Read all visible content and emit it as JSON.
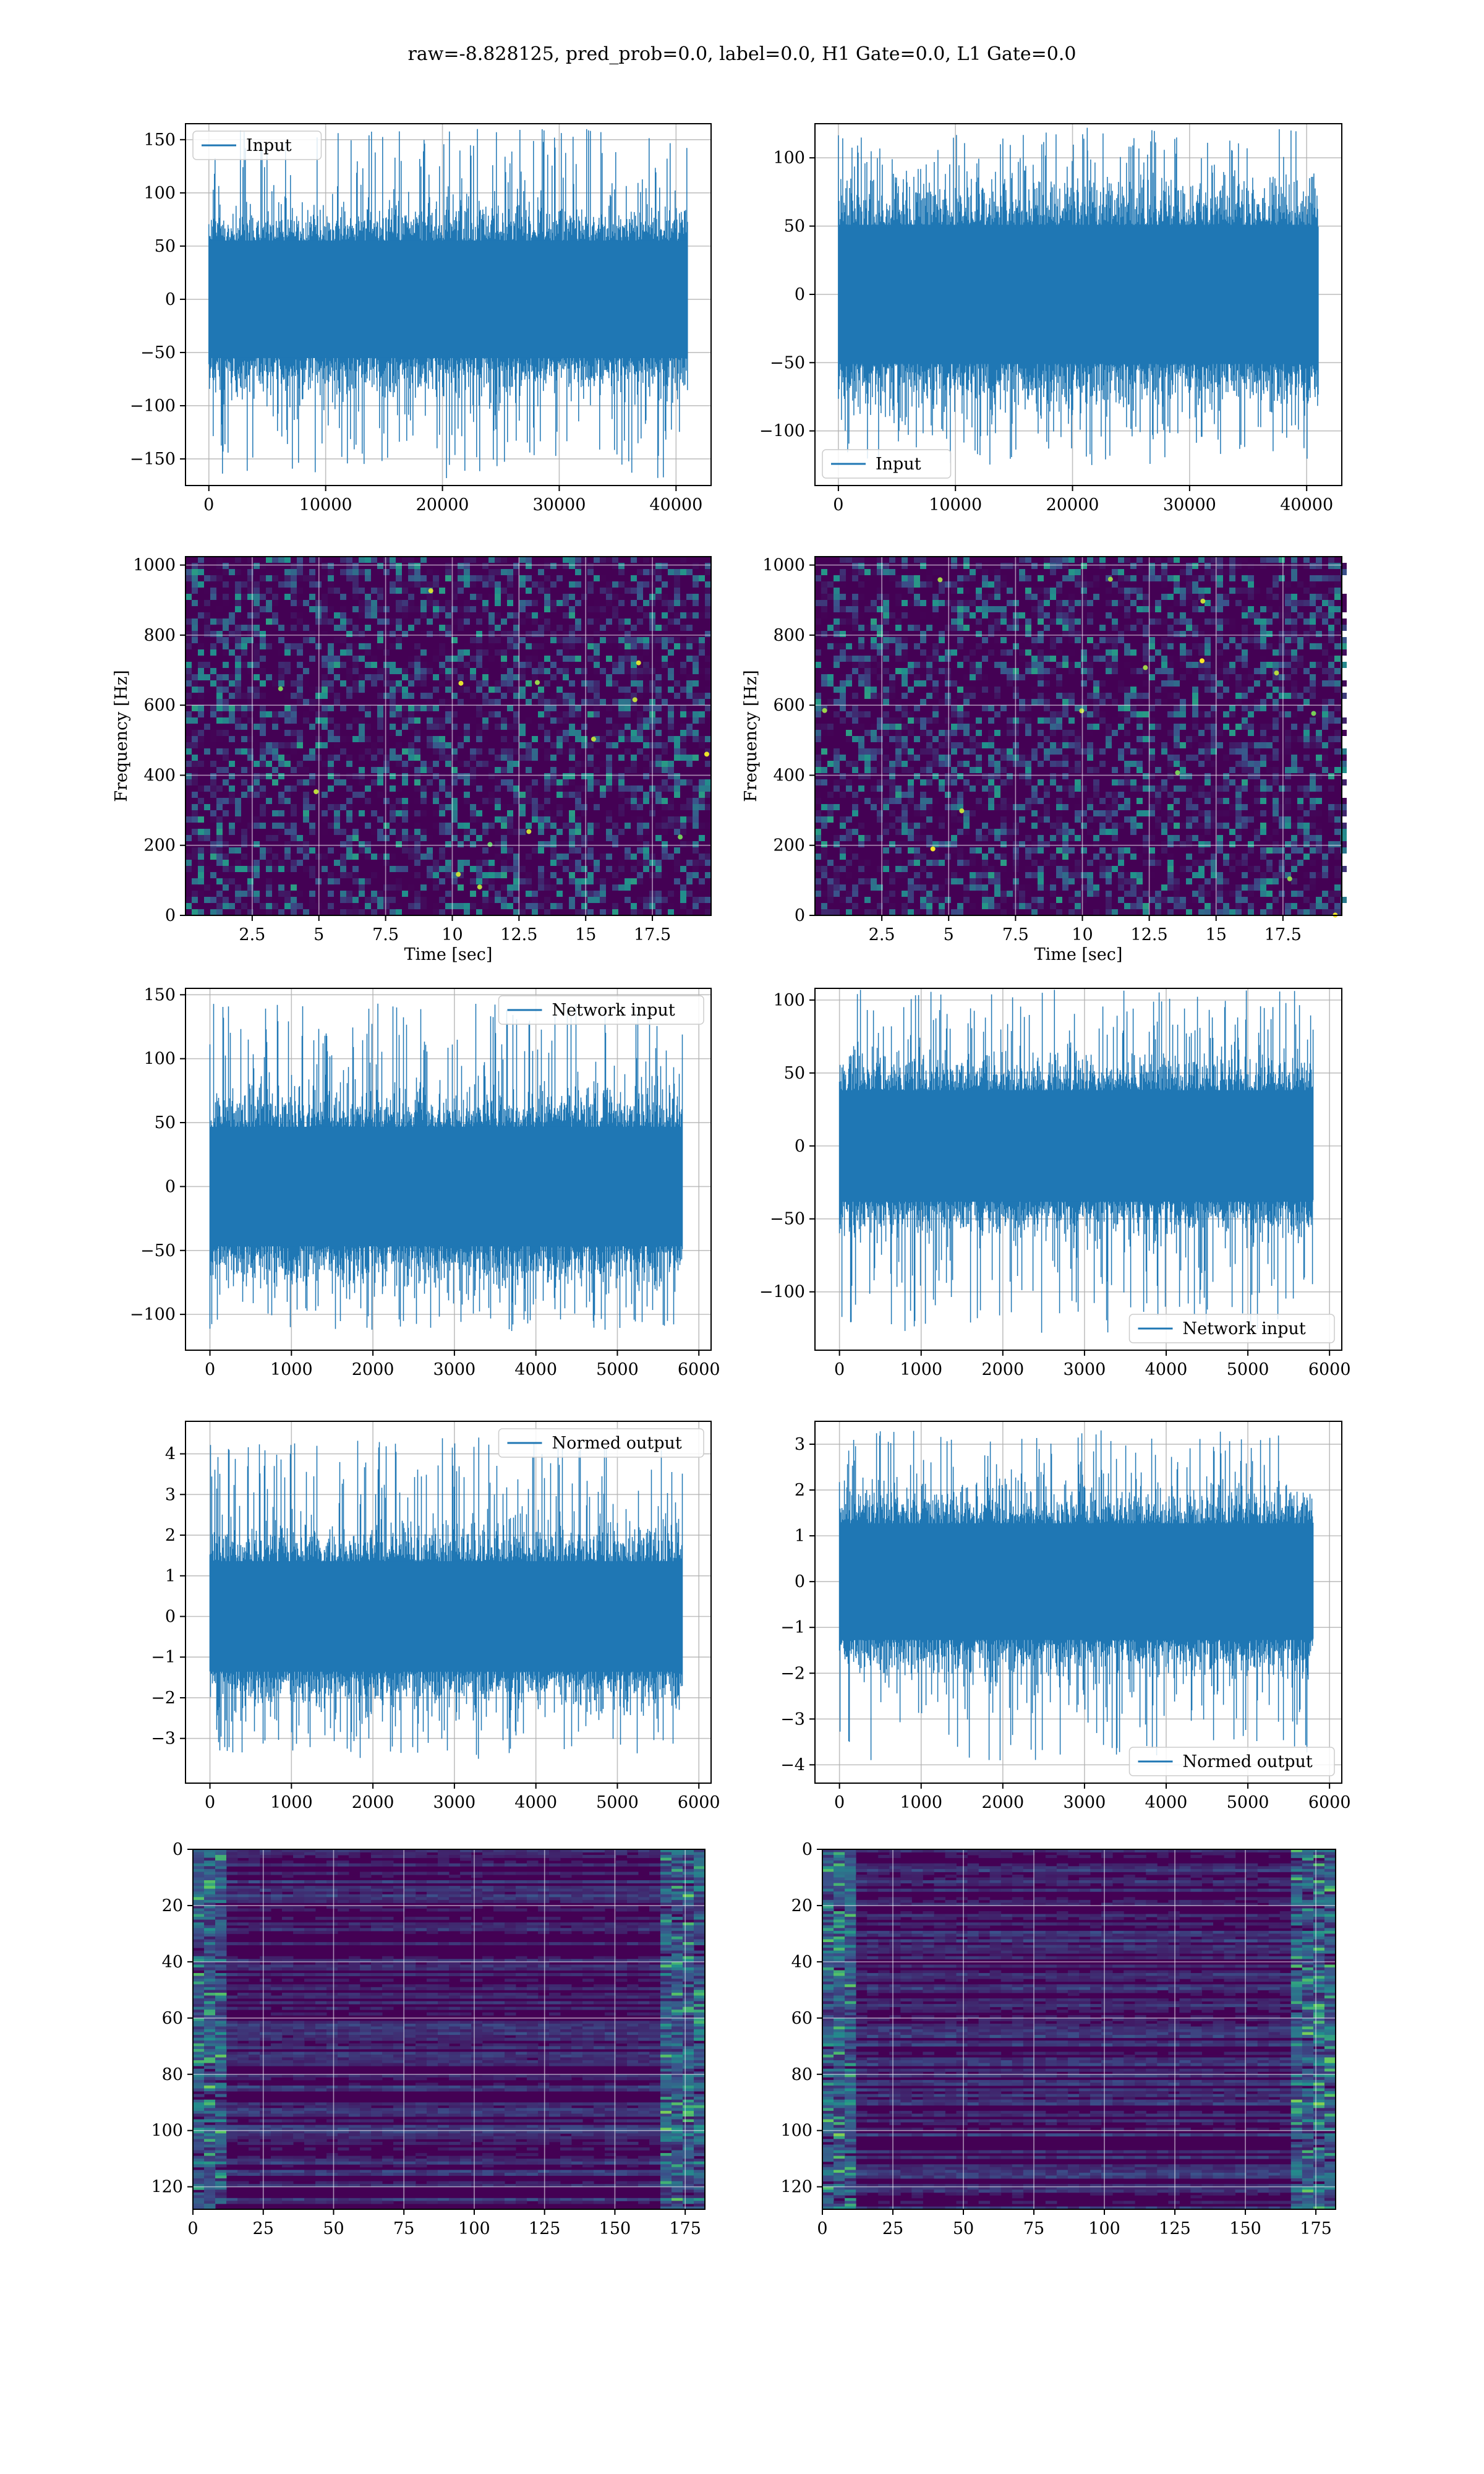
{
  "title": "raw=-8.828125, pred_prob=0.0, label=0.0, H1 Gate=0.0, L1 Gate=0.0",
  "colors": {
    "series": "#1f77b4",
    "heat_low": "#440154",
    "heat_mid": "#31688e",
    "heat_hi": "#35b779",
    "heat_top": "#fde725",
    "grid": "#b0b0b0"
  },
  "chart_data": [
    {
      "type": "line",
      "id": "p00",
      "xlim": [
        -2000,
        43000
      ],
      "ylim": [
        -175,
        165
      ],
      "xticks": [
        0,
        10000,
        20000,
        30000,
        40000
      ],
      "yticks": [
        -150,
        -100,
        -50,
        0,
        50,
        100,
        150
      ],
      "xlabel": "",
      "ylabel": "",
      "series": [
        {
          "name": "Input",
          "n": 40960,
          "band": [
            -65,
            65
          ],
          "spike_max": 160,
          "spike_min": -168
        }
      ],
      "legend": "top-left"
    },
    {
      "type": "line",
      "id": "p01",
      "xlim": [
        -2000,
        43000
      ],
      "ylim": [
        -140,
        125
      ],
      "xticks": [
        0,
        10000,
        20000,
        30000,
        40000
      ],
      "yticks": [
        -100,
        -50,
        0,
        50,
        100
      ],
      "xlabel": "",
      "ylabel": "",
      "series": [
        {
          "name": "Input",
          "n": 40960,
          "band": [
            -60,
            60
          ],
          "spike_max": 122,
          "spike_min": -125
        }
      ],
      "legend": "bottom-left"
    },
    {
      "type": "heatmap",
      "id": "p10",
      "xlim": [
        0,
        19.7
      ],
      "ylim": [
        0,
        1024
      ],
      "xticks": [
        2.5,
        5.0,
        7.5,
        10.0,
        12.5,
        15.0,
        17.5
      ],
      "yticks": [
        0,
        200,
        400,
        600,
        800,
        1000
      ],
      "xlabel": "Time [sec]",
      "ylabel": "Frequency [Hz]"
    },
    {
      "type": "heatmap",
      "id": "p11",
      "xlim": [
        0,
        19.7
      ],
      "ylim": [
        0,
        1024
      ],
      "xticks": [
        2.5,
        5.0,
        7.5,
        10.0,
        12.5,
        15.0,
        17.5
      ],
      "yticks": [
        0,
        200,
        400,
        600,
        800,
        1000
      ],
      "xlabel": "Time [sec]",
      "ylabel": "Frequency [Hz]"
    },
    {
      "type": "line",
      "id": "p20",
      "xlim": [
        -300,
        6150
      ],
      "ylim": [
        -128,
        155
      ],
      "xticks": [
        0,
        1000,
        2000,
        3000,
        4000,
        5000,
        6000
      ],
      "yticks": [
        -100,
        -50,
        0,
        50,
        100,
        150
      ],
      "xlabel": "",
      "ylabel": "",
      "series": [
        {
          "name": "Network input",
          "n": 5800,
          "band": [
            -55,
            55
          ],
          "spike_max": 143,
          "spike_min": -113
        }
      ],
      "legend": "top-right"
    },
    {
      "type": "line",
      "id": "p21",
      "xlim": [
        -300,
        6150
      ],
      "ylim": [
        -140,
        108
      ],
      "xticks": [
        0,
        1000,
        2000,
        3000,
        4000,
        5000,
        6000
      ],
      "yticks": [
        -100,
        -50,
        0,
        50,
        100
      ],
      "xlabel": "",
      "ylabel": "",
      "series": [
        {
          "name": "Network input",
          "n": 5800,
          "band": [
            -45,
            45
          ],
          "spike_max": 107,
          "spike_min": -128
        }
      ],
      "legend": "bottom-right"
    },
    {
      "type": "line",
      "id": "p30",
      "xlim": [
        -300,
        6150
      ],
      "ylim": [
        -4.1,
        4.8
      ],
      "xticks": [
        0,
        1000,
        2000,
        3000,
        4000,
        5000,
        6000
      ],
      "yticks": [
        -3,
        -2,
        -1,
        0,
        1,
        2,
        3,
        4
      ],
      "xlabel": "",
      "ylabel": "",
      "series": [
        {
          "name": "Normed output",
          "n": 5800,
          "band": [
            -1.6,
            1.6
          ],
          "spike_max": 4.4,
          "spike_min": -3.5
        }
      ],
      "legend": "top-right"
    },
    {
      "type": "line",
      "id": "p31",
      "xlim": [
        -300,
        6150
      ],
      "ylim": [
        -4.4,
        3.5
      ],
      "xticks": [
        0,
        1000,
        2000,
        3000,
        4000,
        5000,
        6000
      ],
      "yticks": [
        -4,
        -3,
        -2,
        -1,
        0,
        1,
        2,
        3
      ],
      "xlabel": "",
      "ylabel": "",
      "series": [
        {
          "name": "Normed output",
          "n": 5800,
          "band": [
            -1.5,
            1.5
          ],
          "spike_max": 3.3,
          "spike_min": -3.9
        }
      ],
      "legend": "bottom-right"
    },
    {
      "type": "heatmap",
      "id": "p40",
      "xlim": [
        0,
        182
      ],
      "ylim": [
        0,
        128
      ],
      "xticks": [
        0,
        25,
        50,
        75,
        100,
        125,
        150,
        175
      ],
      "yticks": [
        0,
        20,
        40,
        60,
        80,
        100,
        120
      ],
      "xlabel": "",
      "ylabel": "",
      "y_inverted": true
    },
    {
      "type": "heatmap",
      "id": "p41",
      "xlim": [
        0,
        182
      ],
      "ylim": [
        0,
        128
      ],
      "xticks": [
        0,
        25,
        50,
        75,
        100,
        125,
        150,
        175
      ],
      "yticks": [
        0,
        20,
        40,
        60,
        80,
        100,
        120
      ],
      "xlabel": "",
      "ylabel": "",
      "y_inverted": true
    }
  ]
}
